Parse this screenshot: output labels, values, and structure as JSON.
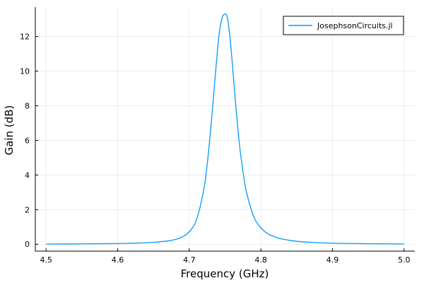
{
  "colors": {
    "series": "#009AFA",
    "grid": "#E6E6E6",
    "axis": "#000000",
    "background": "#FFFFFF"
  },
  "chart_data": {
    "type": "line",
    "title": "",
    "xlabel": "Frequency (GHz)",
    "ylabel": "Gain (dB)",
    "xlim": [
      4.485,
      5.015
    ],
    "ylim": [
      -0.4,
      13.7
    ],
    "xticks": [
      4.5,
      4.6,
      4.7,
      4.8,
      4.9,
      5.0
    ],
    "xtick_labels": [
      "4.5",
      "4.6",
      "4.7",
      "4.8",
      "4.9",
      "5.0"
    ],
    "yticks": [
      0,
      2,
      4,
      6,
      8,
      10,
      12
    ],
    "ytick_labels": [
      "0",
      "2",
      "4",
      "6",
      "8",
      "10",
      "12"
    ],
    "grid": true,
    "legend": {
      "position": "top-right",
      "box": true
    },
    "series": [
      {
        "name": "JosephsonCircuits.jl",
        "color": "#009AFA",
        "x": [
          4.5,
          4.55,
          4.6,
          4.63,
          4.65,
          4.67,
          4.68,
          4.69,
          4.7,
          4.71,
          4.72,
          4.725,
          4.73,
          4.735,
          4.74,
          4.743,
          4.746,
          4.748,
          4.75,
          4.752,
          4.754,
          4.757,
          4.76,
          4.765,
          4.77,
          4.775,
          4.78,
          4.79,
          4.8,
          4.81,
          4.82,
          4.83,
          4.85,
          4.87,
          4.9,
          4.95,
          5.0
        ],
        "y": [
          0.01,
          0.02,
          0.04,
          0.07,
          0.11,
          0.19,
          0.27,
          0.42,
          0.72,
          1.4,
          3.1,
          4.6,
          6.7,
          9.1,
          11.5,
          12.5,
          13.1,
          13.25,
          13.3,
          13.25,
          12.9,
          11.9,
          10.5,
          8.0,
          5.8,
          4.2,
          3.0,
          1.6,
          0.95,
          0.6,
          0.42,
          0.3,
          0.17,
          0.11,
          0.06,
          0.03,
          0.015
        ]
      }
    ]
  }
}
